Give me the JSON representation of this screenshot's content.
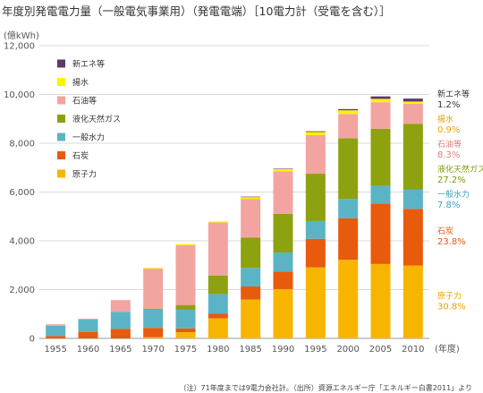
{
  "title": "年度別発電電力量（一般電気事業用）（発電電端）［10電力計（受電を含む）］",
  "footnote": "（注）71年度までは9電力会社計。（出所）資源エネルギー庁「エネルギー白書2011」より",
  "chart_data": {
    "type": "bar",
    "stacked": true,
    "ylabel": "(億kWh)",
    "xlabel": "(年度)",
    "ylim": [
      0,
      12000
    ],
    "yticks": [
      0,
      2000,
      4000,
      6000,
      8000,
      10000,
      12000
    ],
    "ytick_labels": [
      "0",
      "2,000",
      "4,000",
      "6,000",
      "8,000",
      "10,000",
      "12,000"
    ],
    "grid": true,
    "categories": [
      "1955",
      "1960",
      "1965",
      "1970",
      "1975",
      "1980",
      "1985",
      "1990",
      "1995",
      "2000",
      "2005",
      "2010"
    ],
    "series": [
      {
        "name": "原子力",
        "color": "#f7b500",
        "values": [
          0,
          0,
          0,
          50,
          250,
          820,
          1590,
          2020,
          2910,
          3220,
          3050,
          2990
        ]
      },
      {
        "name": "石炭",
        "color": "#e85a0c",
        "values": [
          100,
          270,
          390,
          380,
          160,
          190,
          540,
          720,
          1170,
          1700,
          2480,
          2320
        ]
      },
      {
        "name": "一般水力",
        "color": "#5ab4c5",
        "values": [
          420,
          500,
          700,
          760,
          760,
          810,
          760,
          780,
          730,
          800,
          730,
          800
        ]
      },
      {
        "name": "液化天然ガス",
        "color": "#8ea10e",
        "values": [
          0,
          0,
          0,
          30,
          200,
          760,
          1240,
          1590,
          1940,
          2480,
          2330,
          2690
        ]
      },
      {
        "name": "石油等",
        "color": "#f2a4a0",
        "values": [
          60,
          40,
          480,
          1640,
          2450,
          2170,
          1590,
          1740,
          1580,
          1000,
          1090,
          820
        ]
      },
      {
        "name": "揚水",
        "color": "#fff200",
        "values": [
          0,
          0,
          0,
          30,
          50,
          40,
          80,
          100,
          130,
          150,
          140,
          90
        ]
      },
      {
        "name": "新エネ等",
        "color": "#5a3a6e",
        "values": [
          0,
          0,
          0,
          0,
          0,
          0,
          10,
          10,
          30,
          50,
          100,
          120
        ]
      }
    ],
    "legend": {
      "position": "top-left",
      "order": [
        "新エネ等",
        "揚水",
        "石油等",
        "液化天然ガス",
        "一般水力",
        "石炭",
        "原子力"
      ]
    },
    "annotations": [
      {
        "series": "新エネ等",
        "label": "新エネ等",
        "share": "1.2%",
        "color": "#333333"
      },
      {
        "series": "揚水",
        "label": "揚水",
        "share": "0.9%",
        "color": "#e8a100"
      },
      {
        "series": "石油等",
        "label": "石油等",
        "share": "8.3%",
        "color": "#e27b7b"
      },
      {
        "series": "液化天然ガス",
        "label": "液化天然ガス",
        "share": "27.2%",
        "color": "#7f9a0c"
      },
      {
        "series": "一般水力",
        "label": "一般水力",
        "share": "7.8%",
        "color": "#3aa2bb"
      },
      {
        "series": "石炭",
        "label": "石炭",
        "share": "23.8%",
        "color": "#e85a0c"
      },
      {
        "series": "原子力",
        "label": "原子力",
        "share": "30.8%",
        "color": "#e8a100"
      }
    ]
  }
}
